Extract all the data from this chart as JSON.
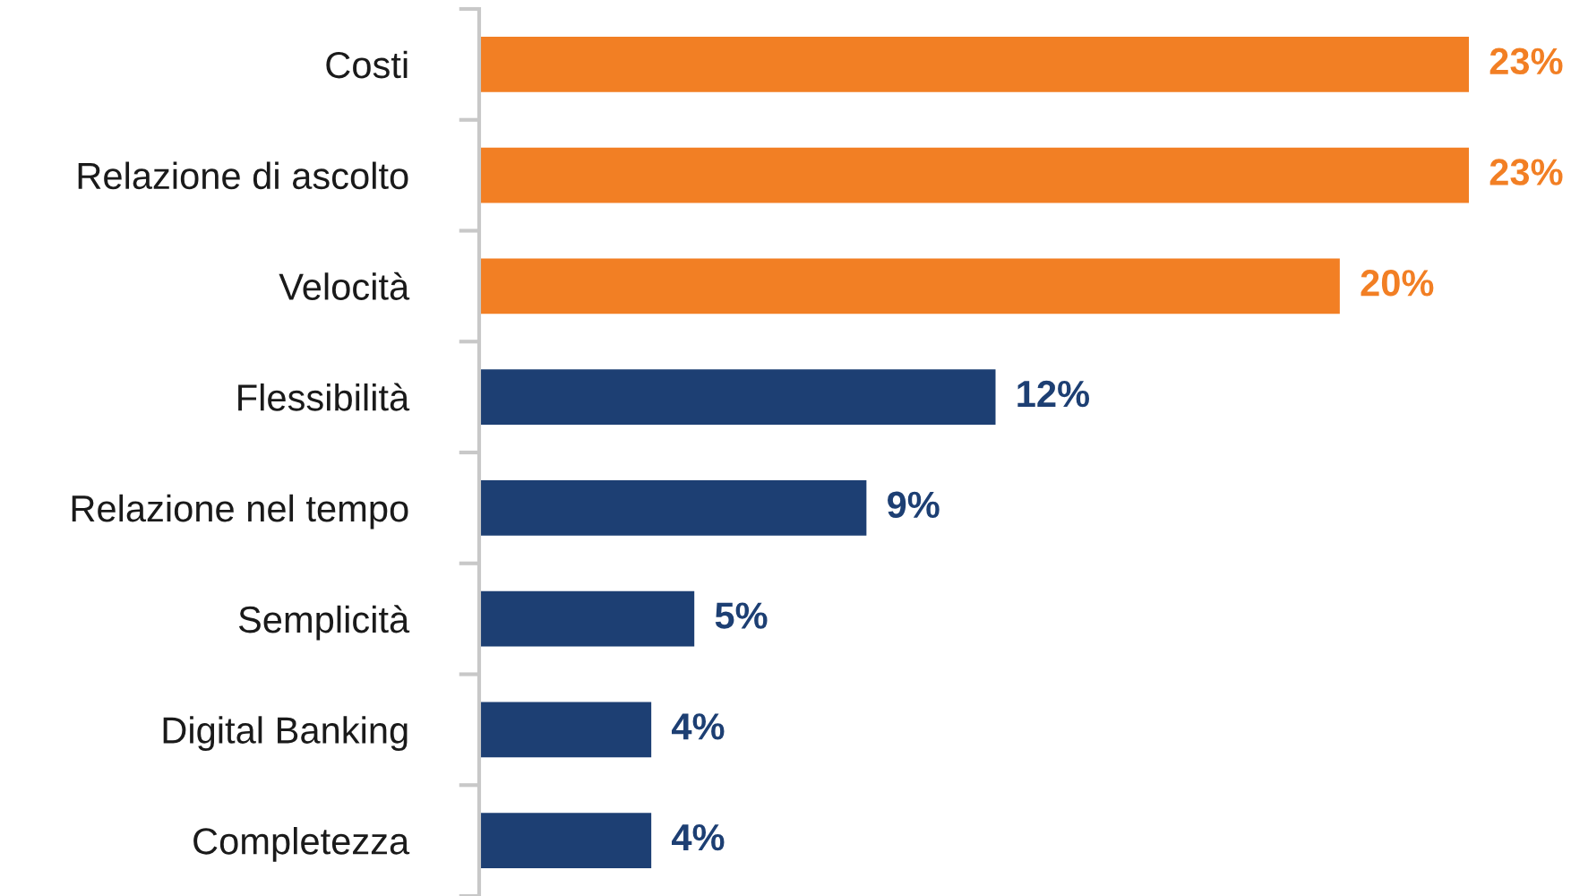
{
  "chart_data": {
    "type": "bar",
    "orientation": "horizontal",
    "categories": [
      "Costi",
      "Relazione di ascolto",
      "Velocità",
      "Flessibilità",
      "Relazione nel tempo",
      "Semplicità",
      "Digital Banking",
      "Completezza"
    ],
    "values": [
      23,
      23,
      20,
      12,
      9,
      5,
      4,
      4
    ],
    "colors": [
      "#f27f24",
      "#f27f24",
      "#f27f24",
      "#1d3f73",
      "#1d3f73",
      "#1d3f73",
      "#1d3f73",
      "#1d3f73"
    ],
    "value_labels": [
      "23%",
      "23%",
      "20%",
      "12%",
      "9%",
      "5%",
      "4%",
      "4%"
    ],
    "grid": false,
    "legend": false
  }
}
